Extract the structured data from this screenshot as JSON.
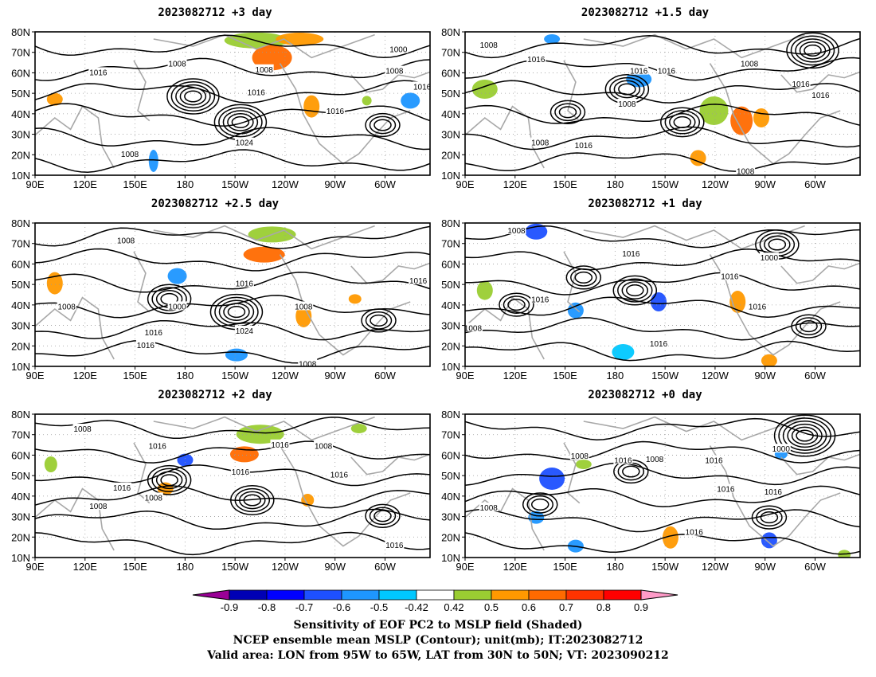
{
  "panels": [
    {
      "title": "2023082712 +3 day",
      "labels": [
        "1008",
        "1016",
        "1008",
        "1008",
        "1016",
        "1024",
        "1016",
        "1000",
        "1008",
        "1016"
      ]
    },
    {
      "title": "2023082712 +1.5 day",
      "labels": [
        "1008",
        "1016",
        "1016",
        "1016",
        "1008",
        "1008",
        "1016",
        "1016",
        "1008",
        "1016",
        "1008"
      ]
    },
    {
      "title": "2023082712 +2.5 day",
      "labels": [
        "1008",
        "1008",
        "1016",
        "1016",
        "1000",
        "1024",
        "1008",
        "1008",
        "1016",
        "1016"
      ]
    },
    {
      "title": "2023082712 +1 day",
      "labels": [
        "1008",
        "1016",
        "1016",
        "1000",
        "1016",
        "1016",
        "1008",
        "1016"
      ]
    },
    {
      "title": "2023082712 +2 day",
      "labels": [
        "1008",
        "1016",
        "1016",
        "1008",
        "1016",
        "1016",
        "1008",
        "1008",
        "1016",
        "1016"
      ]
    },
    {
      "title": "2023082712 +0 day",
      "labels": [
        "1008",
        "1016",
        "1008",
        "1016",
        "1000",
        "1016",
        "1008",
        "1016",
        "1016"
      ]
    }
  ],
  "axes": {
    "lat_labels": [
      "80N",
      "70N",
      "60N",
      "50N",
      "40N",
      "30N",
      "20N",
      "10N"
    ],
    "lon_labels": [
      "90E",
      "120E",
      "150E",
      "180",
      "150W",
      "120W",
      "90W",
      "60W"
    ]
  },
  "colorbar": {
    "ticks": [
      "-0.9",
      "-0.8",
      "-0.7",
      "-0.6",
      "-0.5",
      "-0.42",
      "0.42",
      "0.5",
      "0.6",
      "0.7",
      "0.8",
      "0.9"
    ],
    "colors": [
      "#9a0096",
      "#0000b4",
      "#0000ff",
      "#1e50ff",
      "#1e96ff",
      "#00c8ff",
      "#ffffff",
      "#9acd32",
      "#ff9900",
      "#ff6a00",
      "#ff3300",
      "#ff0000",
      "#ff9bc8"
    ]
  },
  "caption": {
    "line1": "Sensitivity of EOF PC2 to MSLP field (Shaded)",
    "line2": "NCEP ensemble mean MSLP (Contour); unit(mb); IT:2023082712",
    "line3": "Valid area: LON from 95W to 65W, LAT from 30N to 50N; VT: 2023090212"
  }
}
